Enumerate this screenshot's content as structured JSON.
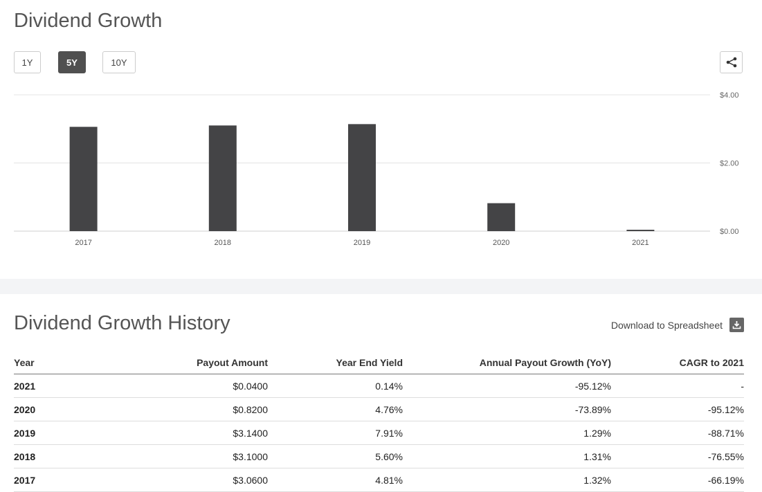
{
  "chart_section": {
    "title": "Dividend Growth",
    "ranges": [
      {
        "label": "1Y",
        "active": false
      },
      {
        "label": "5Y",
        "active": true
      },
      {
        "label": "10Y",
        "active": false
      }
    ],
    "share_icon": "share-icon"
  },
  "chart_data": {
    "type": "bar",
    "title": "Dividend Growth",
    "categories": [
      "2017",
      "2018",
      "2019",
      "2020",
      "2021"
    ],
    "values": [
      3.06,
      3.1,
      3.14,
      0.82,
      0.04
    ],
    "ylim": [
      0,
      4
    ],
    "yticks": [
      0,
      2,
      4
    ],
    "ytick_labels": [
      "$0.00",
      "$2.00",
      "$4.00"
    ],
    "xlabel": "",
    "ylabel": "",
    "color": "#444446",
    "grid": true
  },
  "history": {
    "title": "Dividend Growth History",
    "download_label": "Download to Spreadsheet",
    "download_icon": "download-icon",
    "columns": [
      "Year",
      "Payout Amount",
      "Year End Yield",
      "Annual Payout Growth (YoY)",
      "CAGR to 2021"
    ],
    "rows": [
      [
        "2021",
        "$0.0400",
        "0.14%",
        "-95.12%",
        "-"
      ],
      [
        "2020",
        "$0.8200",
        "4.76%",
        "-73.89%",
        "-95.12%"
      ],
      [
        "2019",
        "$3.1400",
        "7.91%",
        "1.29%",
        "-88.71%"
      ],
      [
        "2018",
        "$3.1000",
        "5.60%",
        "1.31%",
        "-76.55%"
      ],
      [
        "2017",
        "$3.0600",
        "4.81%",
        "1.32%",
        "-66.19%"
      ]
    ]
  }
}
